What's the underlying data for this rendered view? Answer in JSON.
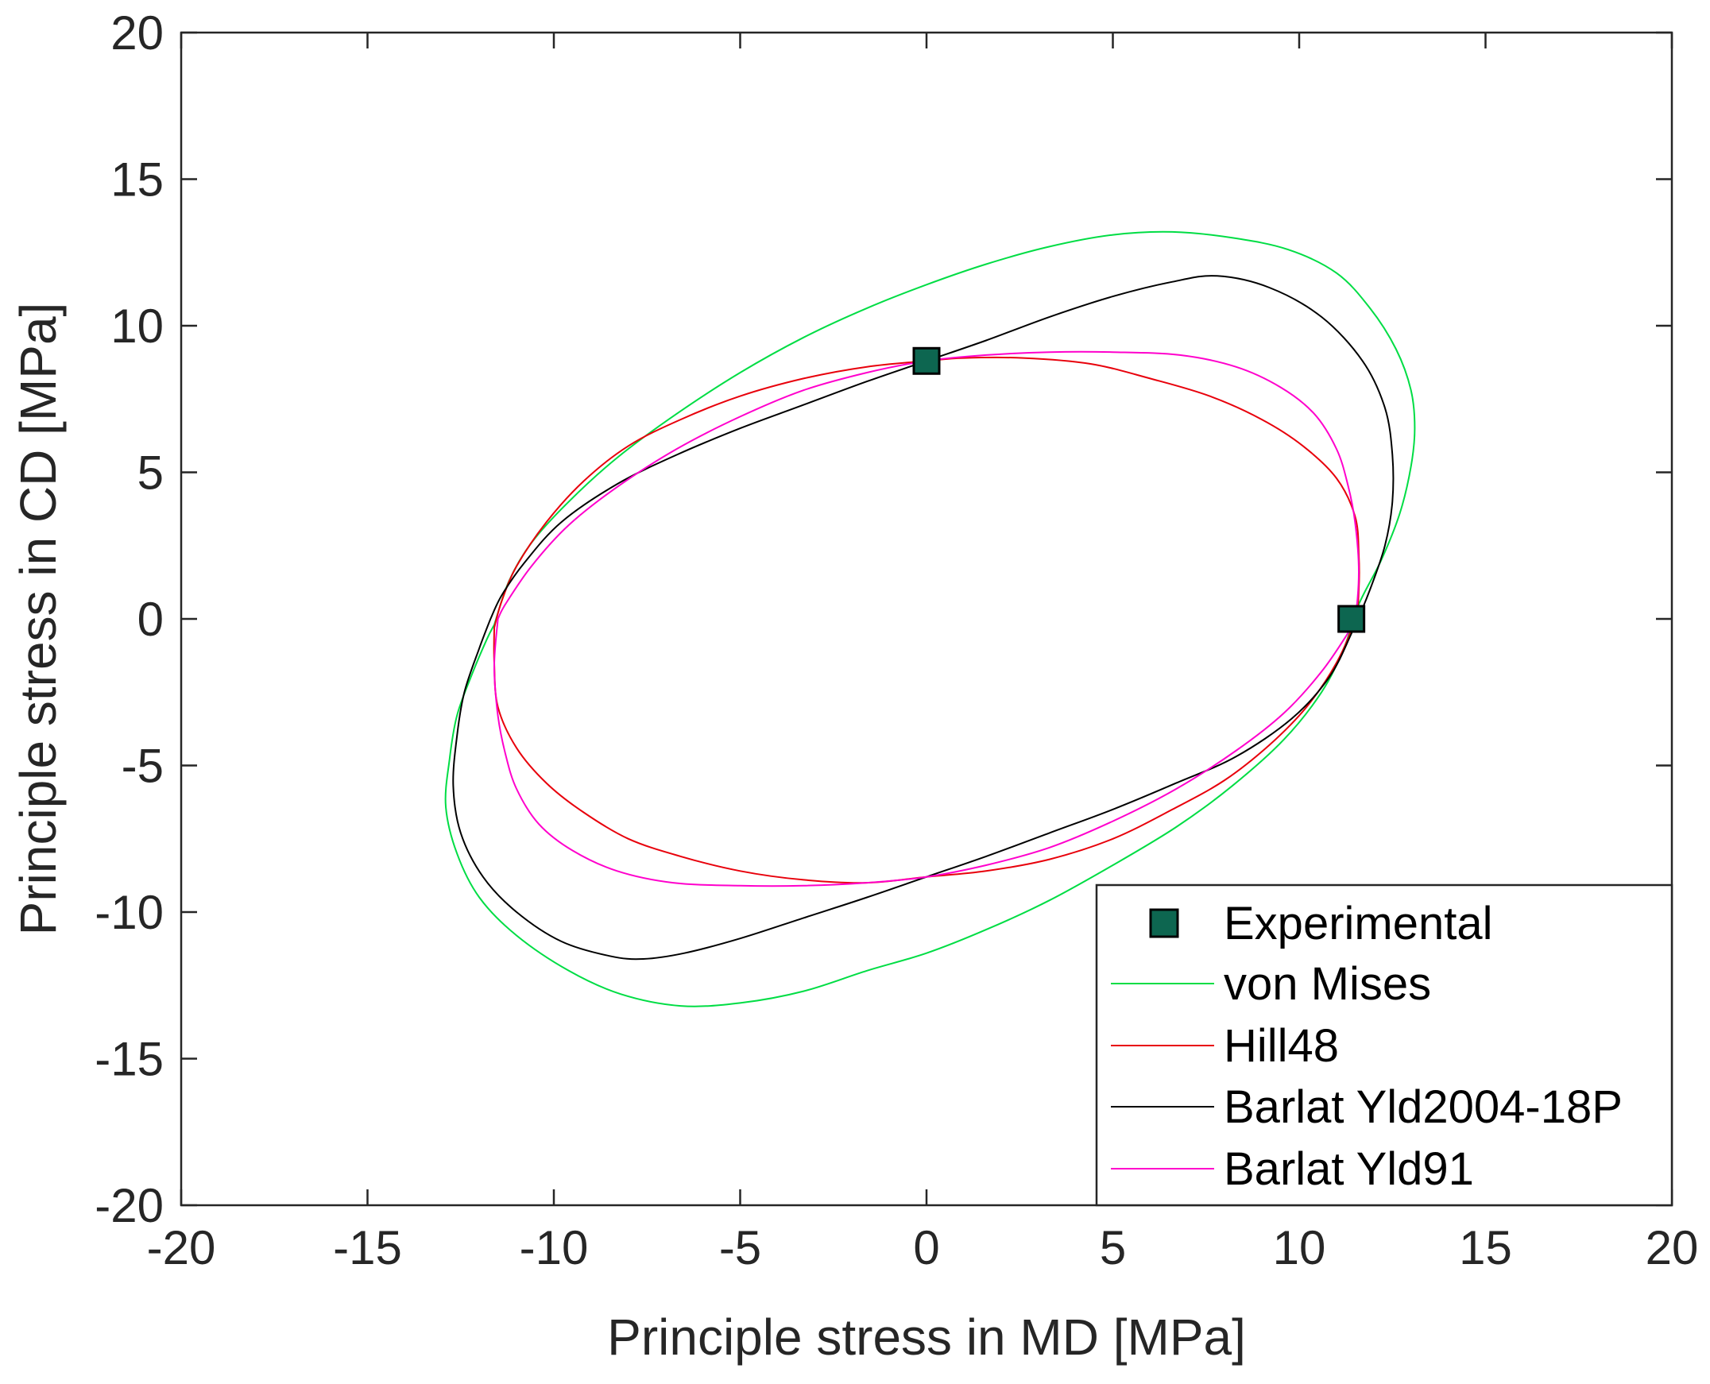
{
  "chart_data": {
    "type": "line",
    "title": "",
    "xlabel": "Principle stress in MD [MPa]",
    "ylabel": "Principle stress in CD [MPa]",
    "xlim": [
      -20,
      20
    ],
    "ylim": [
      -20,
      20
    ],
    "xticks": [
      -20,
      -15,
      -10,
      -5,
      0,
      5,
      10,
      15,
      20
    ],
    "yticks": [
      -20,
      -15,
      -10,
      -5,
      0,
      5,
      10,
      15,
      20
    ],
    "grid": false,
    "legend_position": "bottom-right",
    "experimental": {
      "name": "Experimental",
      "color": "#0d6650",
      "points": [
        [
          0,
          8.8
        ],
        [
          11.4,
          0
        ]
      ]
    },
    "series": [
      {
        "name": "von Mises",
        "color": "#00dd44",
        "points": [
          [
            -11.6,
            -0.2
          ],
          [
            -11.8,
            -0.7
          ],
          [
            -12.2,
            -1.9
          ],
          [
            -12.6,
            -3.3
          ],
          [
            -12.8,
            -4.8
          ],
          [
            -12.9,
            -6.4
          ],
          [
            -12.6,
            -8.0
          ],
          [
            -12.0,
            -9.5
          ],
          [
            -11.0,
            -10.8
          ],
          [
            -9.6,
            -12.0
          ],
          [
            -8.2,
            -12.8
          ],
          [
            -6.6,
            -13.2
          ],
          [
            -5.0,
            -13.1
          ],
          [
            -3.3,
            -12.7
          ],
          [
            -1.6,
            -12.0
          ],
          [
            0.0,
            -11.4
          ],
          [
            1.6,
            -10.6
          ],
          [
            3.3,
            -9.6
          ],
          [
            5.0,
            -8.4
          ],
          [
            6.7,
            -7.1
          ],
          [
            8.2,
            -5.7
          ],
          [
            9.6,
            -4.1
          ],
          [
            10.6,
            -2.5
          ],
          [
            11.2,
            -1.0
          ],
          [
            11.6,
            0.5
          ],
          [
            12.2,
            2.0
          ],
          [
            12.7,
            3.6
          ],
          [
            13.0,
            5.2
          ],
          [
            13.1,
            6.5
          ],
          [
            13.0,
            7.8
          ],
          [
            12.6,
            9.2
          ],
          [
            11.9,
            10.6
          ],
          [
            11.0,
            11.8
          ],
          [
            9.7,
            12.6
          ],
          [
            8.2,
            13.0
          ],
          [
            6.6,
            13.2
          ],
          [
            5.0,
            13.1
          ],
          [
            3.3,
            12.7
          ],
          [
            1.6,
            12.1
          ],
          [
            0.0,
            11.4
          ],
          [
            -1.6,
            10.6
          ],
          [
            -3.3,
            9.6
          ],
          [
            -5.0,
            8.4
          ],
          [
            -6.7,
            7.0
          ],
          [
            -8.3,
            5.5
          ],
          [
            -9.6,
            4.0
          ],
          [
            -10.6,
            2.6
          ],
          [
            -11.2,
            1.3
          ],
          [
            -11.6,
            -0.2
          ]
        ]
      },
      {
        "name": "Hill48",
        "color": "#e8000b",
        "points": [
          [
            -11.6,
            -0.3
          ],
          [
            -11.6,
            -1.5
          ],
          [
            -11.5,
            -3.0
          ],
          [
            -11.0,
            -4.4
          ],
          [
            -10.2,
            -5.6
          ],
          [
            -9.2,
            -6.6
          ],
          [
            -8.0,
            -7.5
          ],
          [
            -6.6,
            -8.1
          ],
          [
            -5.0,
            -8.6
          ],
          [
            -3.3,
            -8.9
          ],
          [
            -1.6,
            -9.0
          ],
          [
            0.0,
            -8.8
          ],
          [
            1.6,
            -8.6
          ],
          [
            3.3,
            -8.2
          ],
          [
            5.0,
            -7.5
          ],
          [
            6.6,
            -6.5
          ],
          [
            8.0,
            -5.5
          ],
          [
            9.2,
            -4.3
          ],
          [
            10.2,
            -3.0
          ],
          [
            11.0,
            -1.5
          ],
          [
            11.5,
            0.0
          ],
          [
            11.6,
            1.0
          ],
          [
            11.6,
            2.2
          ],
          [
            11.5,
            3.5
          ],
          [
            11.0,
            4.8
          ],
          [
            10.1,
            5.9
          ],
          [
            9.0,
            6.8
          ],
          [
            7.6,
            7.6
          ],
          [
            6.0,
            8.2
          ],
          [
            4.4,
            8.7
          ],
          [
            2.6,
            8.9
          ],
          [
            1.0,
            8.9
          ],
          [
            0.0,
            8.8
          ],
          [
            -1.6,
            8.6
          ],
          [
            -3.3,
            8.2
          ],
          [
            -5.0,
            7.6
          ],
          [
            -6.6,
            6.8
          ],
          [
            -8.0,
            5.9
          ],
          [
            -9.2,
            4.7
          ],
          [
            -10.2,
            3.3
          ],
          [
            -11.0,
            1.8
          ],
          [
            -11.4,
            0.6
          ],
          [
            -11.6,
            -0.3
          ]
        ]
      },
      {
        "name": "Barlat Yld2004-18P",
        "color": "#000000",
        "points": [
          [
            -11.7,
            0.0
          ],
          [
            -12.0,
            -1.0
          ],
          [
            -12.4,
            -2.5
          ],
          [
            -12.6,
            -4.0
          ],
          [
            -12.7,
            -5.7
          ],
          [
            -12.5,
            -7.3
          ],
          [
            -11.9,
            -8.8
          ],
          [
            -11.0,
            -10.0
          ],
          [
            -9.8,
            -11.0
          ],
          [
            -8.5,
            -11.5
          ],
          [
            -7.6,
            -11.6
          ],
          [
            -6.5,
            -11.4
          ],
          [
            -5.0,
            -10.9
          ],
          [
            -3.3,
            -10.2
          ],
          [
            -1.6,
            -9.5
          ],
          [
            0.0,
            -8.8
          ],
          [
            1.6,
            -8.1
          ],
          [
            3.3,
            -7.3
          ],
          [
            5.0,
            -6.5
          ],
          [
            6.7,
            -5.6
          ],
          [
            8.3,
            -4.7
          ],
          [
            9.8,
            -3.4
          ],
          [
            10.8,
            -2.0
          ],
          [
            11.4,
            -0.5
          ],
          [
            11.9,
            1.0
          ],
          [
            12.3,
            2.5
          ],
          [
            12.5,
            4.0
          ],
          [
            12.5,
            5.6
          ],
          [
            12.3,
            7.2
          ],
          [
            11.7,
            8.8
          ],
          [
            10.6,
            10.3
          ],
          [
            9.2,
            11.3
          ],
          [
            7.8,
            11.7
          ],
          [
            6.6,
            11.5
          ],
          [
            5.0,
            11.0
          ],
          [
            3.3,
            10.3
          ],
          [
            1.6,
            9.5
          ],
          [
            0.0,
            8.8
          ],
          [
            -1.6,
            8.1
          ],
          [
            -3.3,
            7.3
          ],
          [
            -5.0,
            6.5
          ],
          [
            -6.7,
            5.6
          ],
          [
            -8.3,
            4.6
          ],
          [
            -9.8,
            3.3
          ],
          [
            -10.8,
            1.9
          ],
          [
            -11.4,
            0.8
          ],
          [
            -11.7,
            0.0
          ]
        ]
      },
      {
        "name": "Barlat Yld91",
        "color": "#ff00cc",
        "points": [
          [
            -11.5,
            0.0
          ],
          [
            -11.6,
            -1.6
          ],
          [
            -11.5,
            -3.3
          ],
          [
            -11.3,
            -4.6
          ],
          [
            -11.0,
            -5.8
          ],
          [
            -10.4,
            -7.0
          ],
          [
            -9.5,
            -7.9
          ],
          [
            -8.3,
            -8.6
          ],
          [
            -6.8,
            -9.0
          ],
          [
            -5.0,
            -9.1
          ],
          [
            -3.3,
            -9.1
          ],
          [
            -1.6,
            -9.0
          ],
          [
            0.0,
            -8.8
          ],
          [
            1.6,
            -8.4
          ],
          [
            3.3,
            -7.8
          ],
          [
            5.0,
            -6.9
          ],
          [
            6.7,
            -5.8
          ],
          [
            8.3,
            -4.5
          ],
          [
            9.6,
            -3.2
          ],
          [
            10.6,
            -1.8
          ],
          [
            11.3,
            -0.5
          ],
          [
            11.5,
            0.0
          ],
          [
            11.6,
            1.6
          ],
          [
            11.5,
            3.3
          ],
          [
            11.3,
            4.6
          ],
          [
            11.0,
            5.8
          ],
          [
            10.4,
            7.0
          ],
          [
            9.5,
            7.9
          ],
          [
            8.3,
            8.6
          ],
          [
            6.8,
            9.0
          ],
          [
            5.0,
            9.1
          ],
          [
            3.3,
            9.1
          ],
          [
            1.6,
            9.0
          ],
          [
            0.0,
            8.8
          ],
          [
            -1.6,
            8.4
          ],
          [
            -3.3,
            7.8
          ],
          [
            -5.0,
            6.9
          ],
          [
            -6.7,
            5.8
          ],
          [
            -8.3,
            4.5
          ],
          [
            -9.6,
            3.2
          ],
          [
            -10.6,
            1.8
          ],
          [
            -11.3,
            0.5
          ],
          [
            -11.5,
            0.0
          ]
        ]
      }
    ]
  }
}
